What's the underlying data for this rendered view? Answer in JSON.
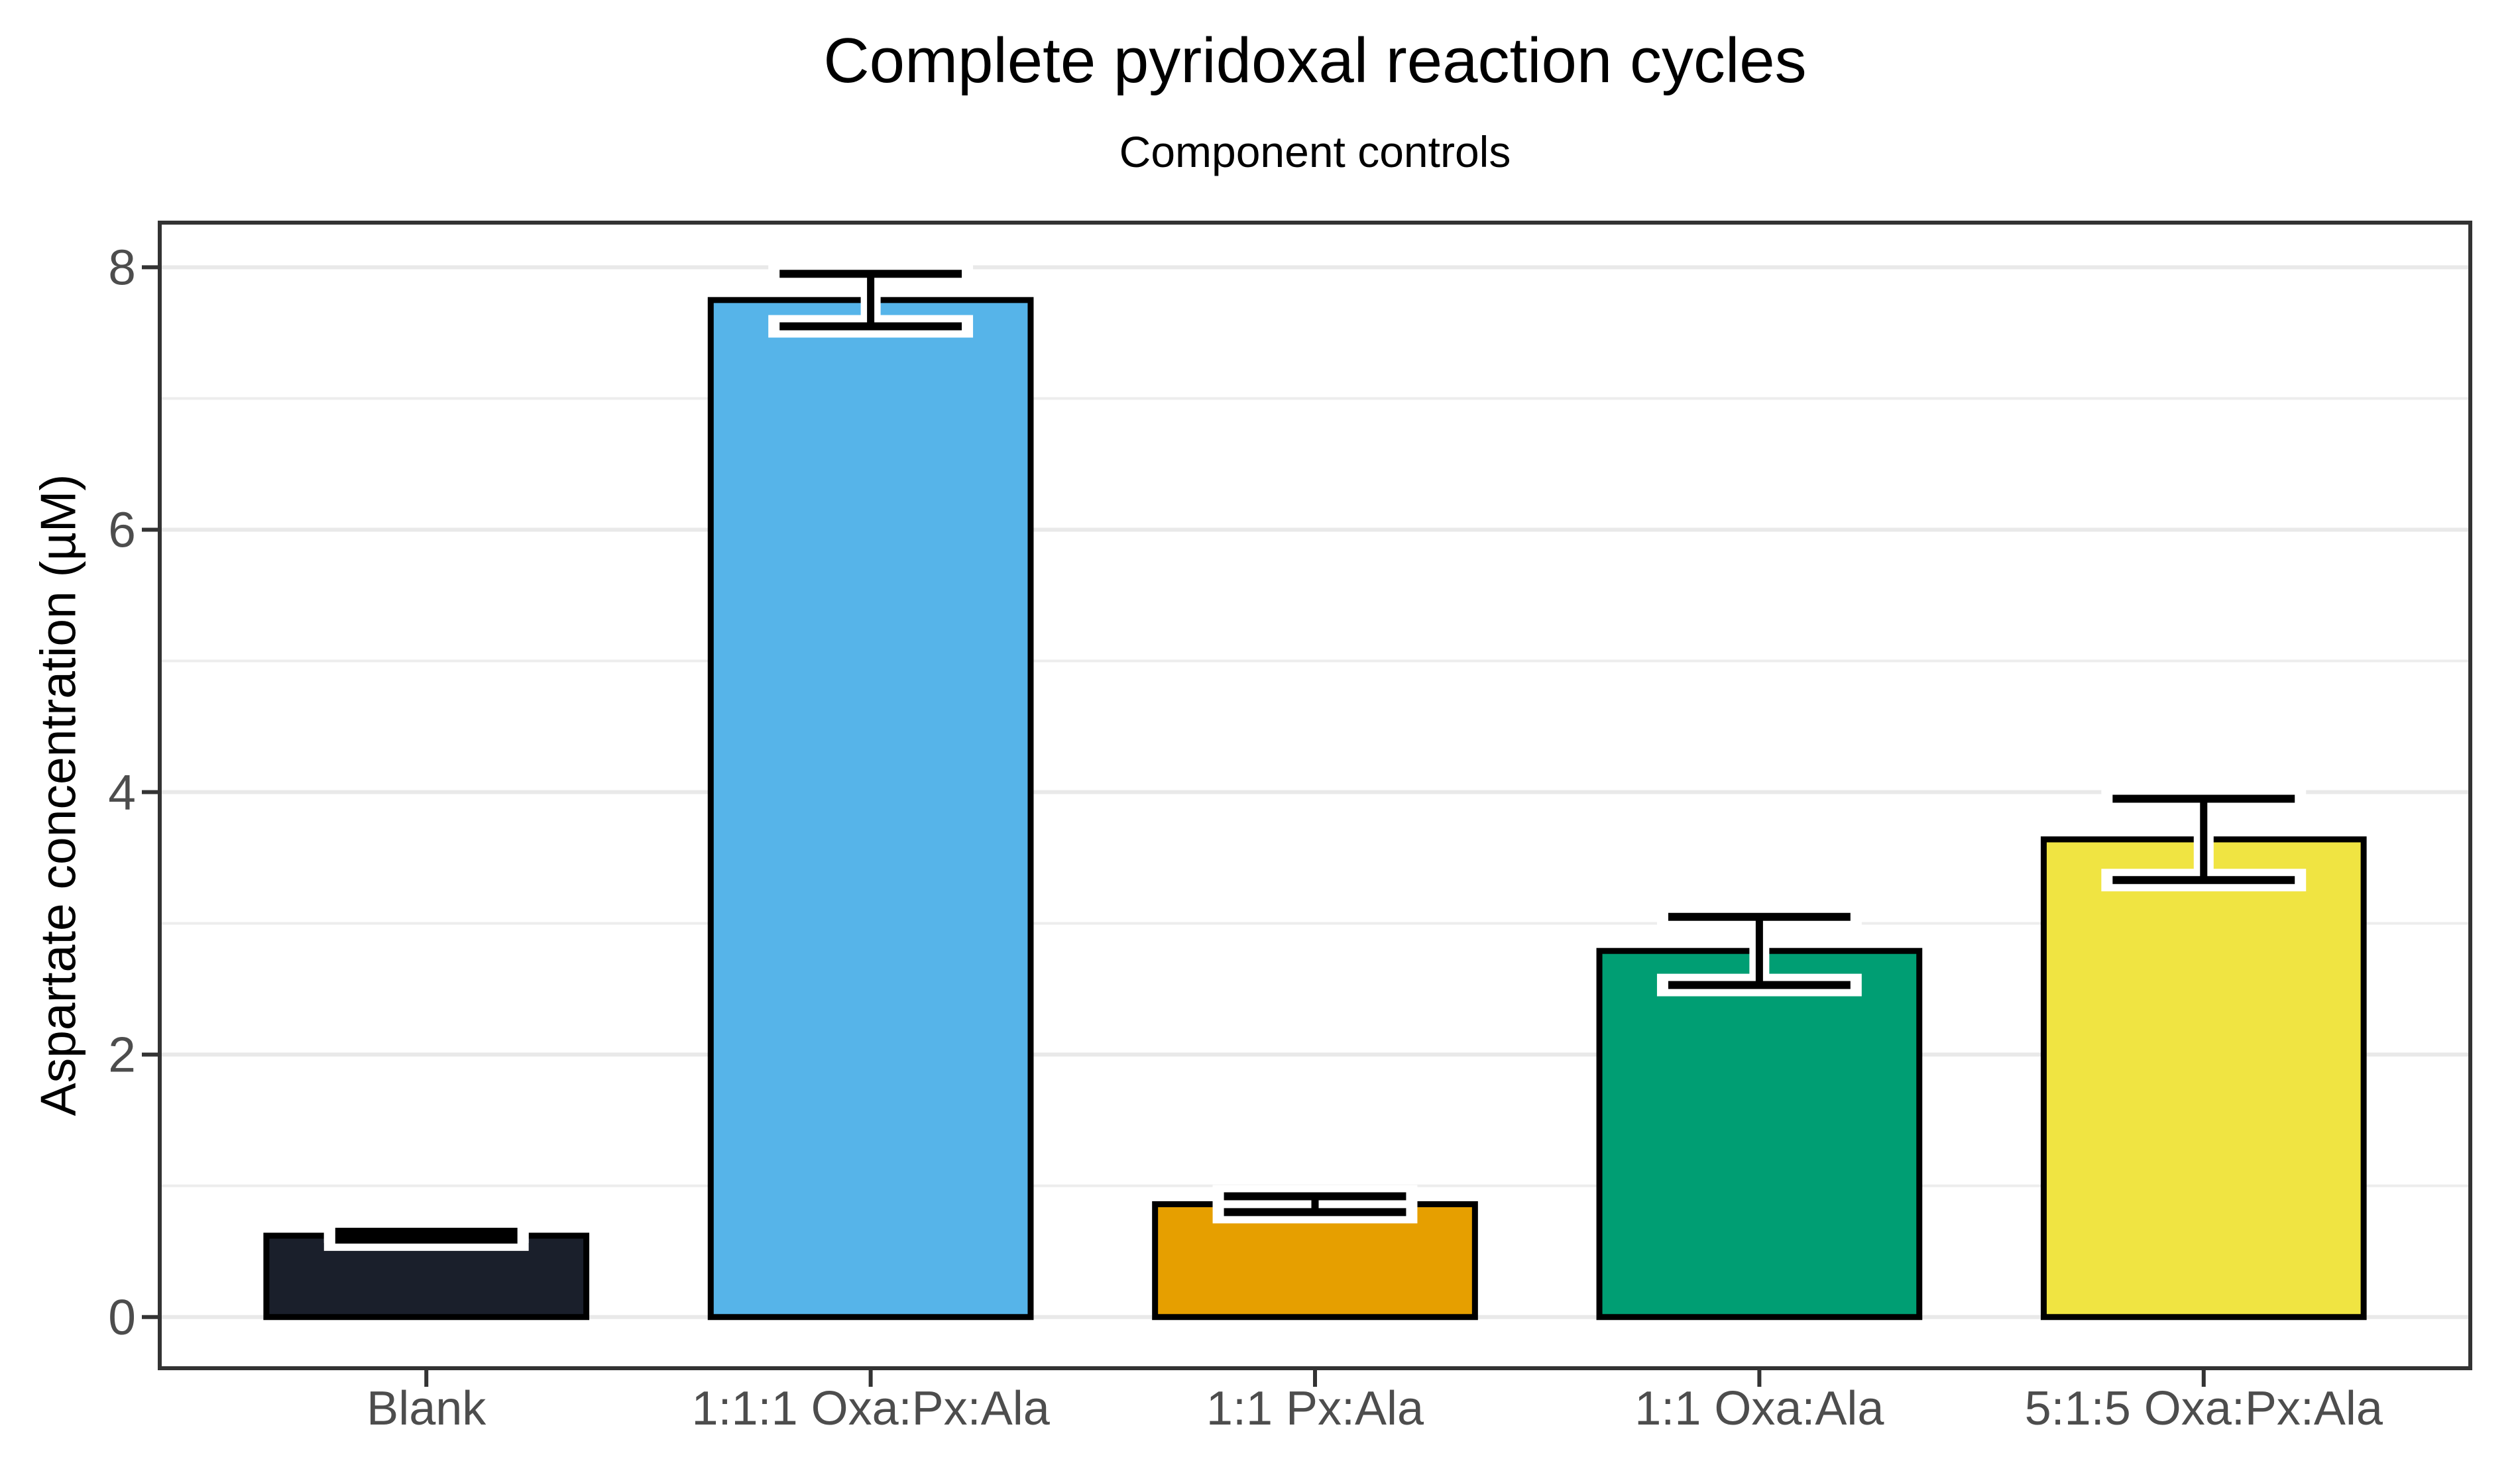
{
  "chart_data": {
    "type": "bar",
    "title": "Complete pyridoxal reaction cycles",
    "subtitle": "Component controls",
    "xlabel": "",
    "ylabel": "Aspartate concentration (µM)",
    "categories": [
      "Blank",
      "1:1:1 Oxa:Px:Ala",
      "1:1 Px:Ala",
      "1:1 Oxa:Ala",
      "5:1:5 Oxa:Px:Ala"
    ],
    "values": [
      0.62,
      7.75,
      0.86,
      2.79,
      3.64
    ],
    "errors": [
      0.03,
      0.2,
      0.06,
      0.26,
      0.31
    ],
    "bar_colors": [
      "#1A1F2B",
      "#56B4E9",
      "#E69F00",
      "#009E73",
      "#F0E442"
    ],
    "bar_stroke_color": "#000000",
    "errorbar_color": "#000000",
    "errorbar_halo_color": "#FFFFFF",
    "yticks": [
      0,
      2,
      4,
      6,
      8
    ],
    "minor_gridlines": [
      1,
      3,
      5,
      7
    ],
    "ylim": [
      -0.39,
      8.34
    ],
    "grid": true,
    "legend": "none",
    "grid_major_color": "#E9E9E9",
    "grid_minor_color": "#EDEDED",
    "panel_border_color": "#333333",
    "tick_color": "#333333",
    "axis_text_color": "#4D4D4D"
  }
}
